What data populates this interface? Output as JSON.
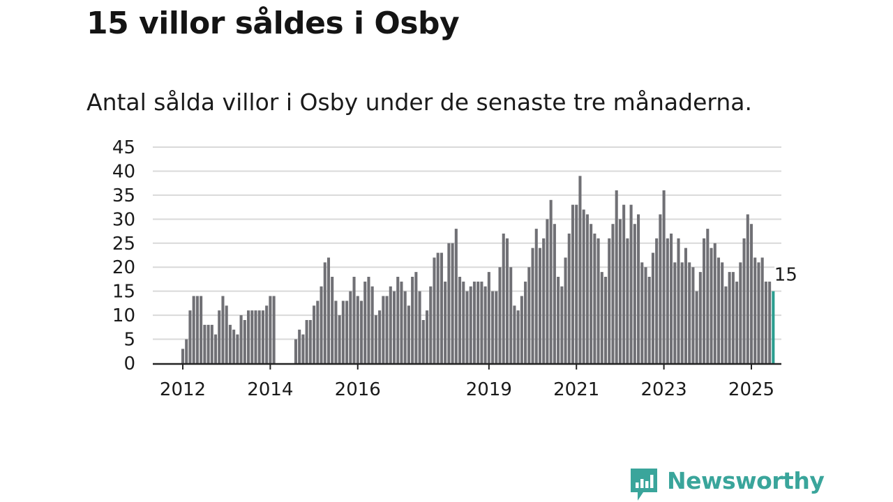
{
  "title": "15 villor såldes i Osby",
  "subtitle": "Antal sålda villor i Osby under de senaste tre månaderna.",
  "brand": {
    "name": "Newsworthy",
    "color": "#3aa59b",
    "icon": "newsworthy-logo-icon"
  },
  "colors": {
    "bar": "#707075",
    "highlight": "#2a9d8f",
    "grid": "#d9d9d9",
    "axis": "#222222"
  },
  "chart_data": {
    "type": "bar",
    "title": "15 villor såldes i Osby",
    "subtitle": "Antal sålda villor i Osby under de senaste tre månaderna.",
    "xlabel": "",
    "ylabel": "",
    "ylim": [
      0,
      45
    ],
    "yticks": [
      0,
      5,
      10,
      15,
      20,
      25,
      30,
      35,
      40,
      45
    ],
    "grid": true,
    "x_start": "2012-01",
    "x_end": "2025-01",
    "x_ticks": [
      "2012",
      "2014",
      "2016",
      "2019",
      "2021",
      "2023",
      "2025"
    ],
    "x_tick_dates": [
      "2012-01",
      "2014-01",
      "2016-01",
      "2019-01",
      "2021-01",
      "2023-01",
      "2025-01"
    ],
    "highlight_last": true,
    "last_value_label": "15",
    "series": [
      {
        "values": [
          3,
          5,
          11,
          14,
          14,
          14,
          8,
          8,
          8,
          6,
          11,
          14,
          12,
          8,
          7,
          6,
          10,
          9,
          11,
          11,
          11,
          11,
          11,
          12,
          14,
          14,
          null,
          null,
          null,
          null,
          null,
          5,
          7,
          6,
          9,
          9,
          12,
          13,
          16,
          21,
          22,
          18,
          13,
          10,
          13,
          13,
          15,
          18,
          14,
          13,
          17,
          18,
          16,
          10,
          11,
          14,
          14,
          16,
          15,
          18,
          17,
          15,
          12,
          18,
          19,
          15,
          9,
          11,
          16,
          22,
          23,
          23,
          17,
          25,
          25,
          28,
          18,
          17,
          15,
          16,
          17,
          17,
          17,
          16,
          19,
          15,
          15,
          20,
          27,
          26,
          20,
          12,
          11,
          14,
          17,
          20,
          24,
          28,
          24,
          26,
          30,
          34,
          29,
          18,
          16,
          22,
          27,
          33,
          33,
          39,
          32,
          31,
          29,
          27,
          26,
          19,
          18,
          26,
          29,
          36,
          30,
          33,
          26,
          33,
          29,
          31,
          21,
          20,
          18,
          23,
          26,
          31,
          36,
          26,
          27,
          21,
          26,
          21,
          24,
          21,
          20,
          15,
          19,
          26,
          28,
          24,
          25,
          22,
          21,
          16,
          19,
          19,
          17,
          21,
          26,
          31,
          29,
          22,
          21,
          22,
          17,
          17,
          15
        ]
      }
    ]
  }
}
